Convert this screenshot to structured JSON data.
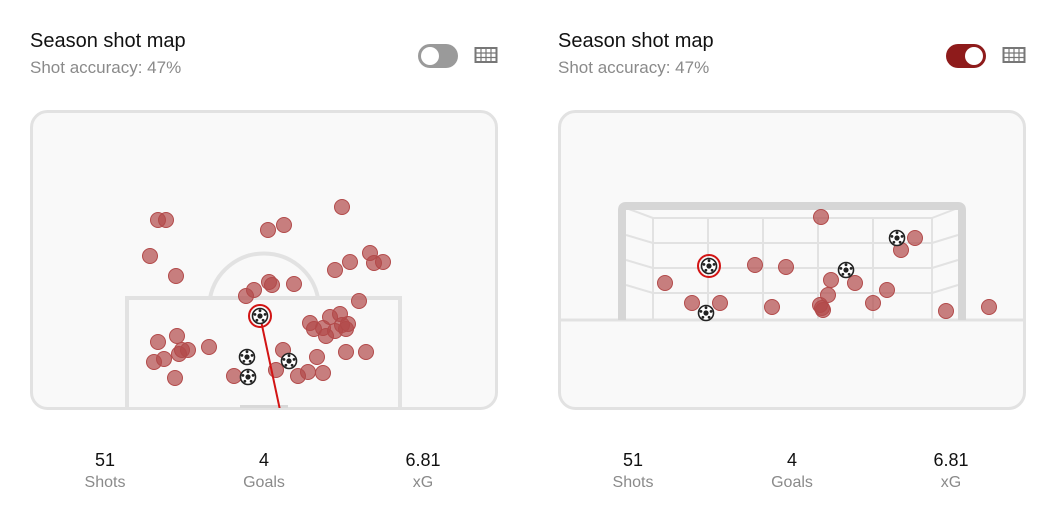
{
  "cards": [
    {
      "title": "Season shot map",
      "subtitle": "Shot accuracy: 47%",
      "view": "pitch",
      "toggle_on": false,
      "stats": {
        "shots": {
          "value": "51",
          "label": "Shots"
        },
        "goals": {
          "value": "4",
          "label": "Goals"
        },
        "xg": {
          "value": "6.81",
          "label": "xG"
        }
      }
    },
    {
      "title": "Season shot map",
      "subtitle": "Shot accuracy: 47%",
      "view": "goal",
      "toggle_on": true,
      "stats": {
        "shots": {
          "value": "51",
          "label": "Shots"
        },
        "goals": {
          "value": "4",
          "label": "Goals"
        },
        "xg": {
          "value": "6.81",
          "label": "xG"
        }
      }
    }
  ],
  "colors": {
    "shot": "#b24a4a",
    "selected": "#d21414",
    "toggle_on": "#8e1b1b",
    "toggle_off": "#9a9a9a",
    "pitch_line": "#e2e2e2",
    "pitch_bg": "#f9f9f9"
  },
  "icons": {
    "goal": "soccer-ball-icon",
    "view_toggle": "goal-net-icon"
  }
}
